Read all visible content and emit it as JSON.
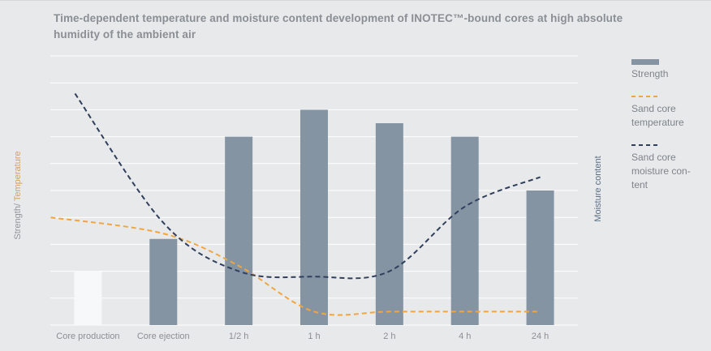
{
  "title": "Time-dependent temperature and moisture content development of INOTEC™-bound cores at high absolute humidity of the ambient air",
  "colors": {
    "bar": "#8594a3",
    "bar_highlight": "#f6f8fa",
    "temperature": "#f0a640",
    "moisture": "#2f3f5c",
    "grid": "#ffffff",
    "background": "#e8e9ea"
  },
  "chart_data": {
    "type": "bar",
    "title": "Time-dependent temperature and moisture content development of INOTEC™-bound cores at high absolute humidity of the ambient air",
    "categories": [
      "Core production",
      "Core ejection",
      "1/2 h",
      "1 h",
      "2 h",
      "4 h",
      "24 h"
    ],
    "ylabel_left": [
      "Strength/ ",
      "Temperature"
    ],
    "ylabel_right": "Moisture content",
    "ylim": [
      0,
      10
    ],
    "grid": true,
    "legend_position": "right",
    "series": [
      {
        "name": "Strength",
        "kind": "bar",
        "values": [
          2.0,
          3.2,
          7.0,
          8.0,
          7.5,
          7.0,
          5.0
        ]
      },
      {
        "name": "Sand core temperature",
        "kind": "dashed-line",
        "values": [
          4.0,
          3.4,
          2.2,
          0.5,
          0.5,
          0.5,
          0.5
        ]
      },
      {
        "name": "Sand core moisture content",
        "kind": "dashed-line",
        "values": [
          8.6,
          3.8,
          2.0,
          1.8,
          2.0,
          4.4,
          5.5
        ]
      }
    ]
  },
  "legend": [
    {
      "type": "bar",
      "label": "Strength"
    },
    {
      "type": "temperature",
      "label": "Sand core temperature"
    },
    {
      "type": "moisture",
      "label": "Sand core moisture con-tent"
    }
  ]
}
